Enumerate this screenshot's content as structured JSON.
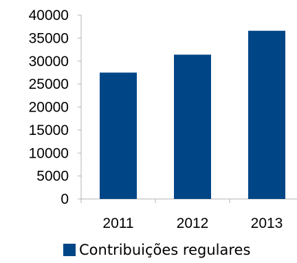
{
  "chart_data": {
    "type": "bar",
    "categories": [
      "2011",
      "2012",
      "2013"
    ],
    "series": [
      {
        "name": "Contribuições regulares",
        "values": [
          27500,
          31400,
          36600
        ],
        "color": "#004586"
      }
    ],
    "ylim": [
      0,
      40000
    ],
    "yticks": [
      0,
      5000,
      10000,
      15000,
      20000,
      25000,
      30000,
      35000,
      40000
    ],
    "grid": false,
    "legend_position": "bottom"
  }
}
